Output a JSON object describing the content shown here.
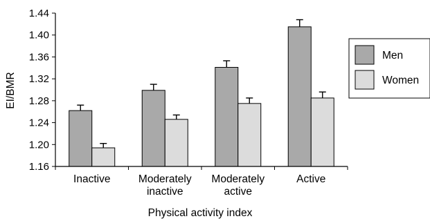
{
  "chart_data": {
    "type": "bar",
    "title": "",
    "xlabel": "Physical activity index",
    "ylabel": "EI/BMR",
    "ylim": [
      1.16,
      1.44
    ],
    "yticks": [
      "1.16",
      "1.20",
      "1.24",
      "1.28",
      "1.32",
      "1.36",
      "1.40",
      "1.44"
    ],
    "categories": [
      [
        "Inactive"
      ],
      [
        "Moderately",
        "inactive"
      ],
      [
        "Moderately",
        "active"
      ],
      [
        "Active"
      ]
    ],
    "series": [
      {
        "name": "Men",
        "color": "#a9a9a9",
        "values": [
          1.262,
          1.299,
          1.341,
          1.415
        ],
        "errors": [
          0.01,
          0.011,
          0.012,
          0.013
        ]
      },
      {
        "name": "Women",
        "color": "#dcdcdc",
        "values": [
          1.194,
          1.246,
          1.275,
          1.285
        ],
        "errors": [
          0.008,
          0.008,
          0.01,
          0.011
        ]
      }
    ],
    "grid": false,
    "error_bars": true,
    "legend_position": "right"
  }
}
